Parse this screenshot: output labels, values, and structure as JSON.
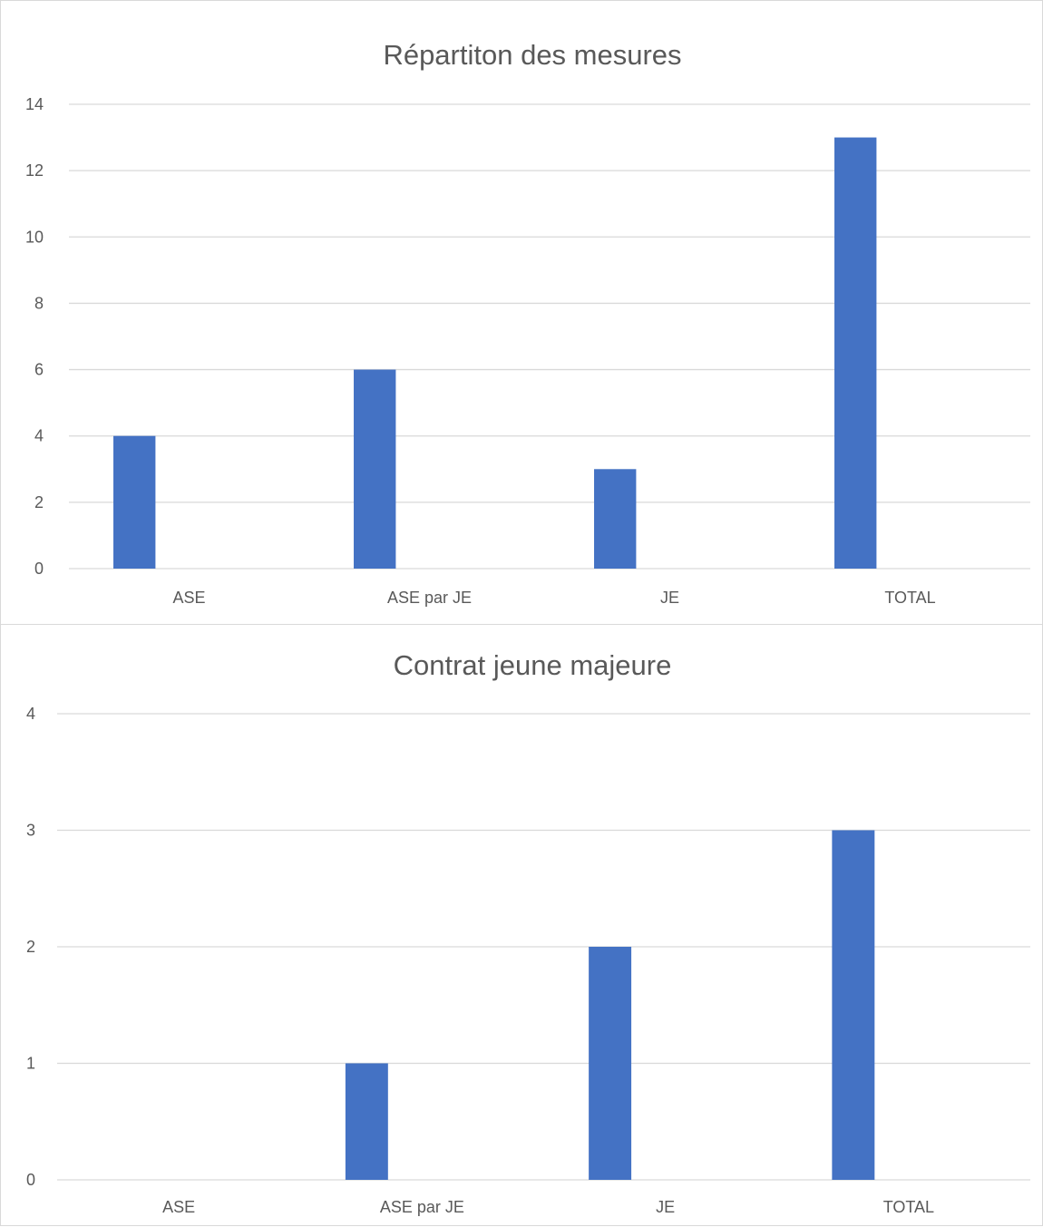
{
  "colors": {
    "bar": "#4472C4",
    "gridline": "#D9D9D9",
    "text": "#595959",
    "border": "#D9D9D9"
  },
  "chart_data": [
    {
      "type": "bar",
      "title": "Répartiton des mesures",
      "categories": [
        "ASE",
        "ASE par JE",
        "JE",
        "TOTAL"
      ],
      "series": [
        {
          "values": [
            4,
            6,
            3,
            13
          ]
        }
      ],
      "xlabel": "",
      "ylabel": "",
      "ylim": [
        0,
        14
      ],
      "yticks": [
        0,
        2,
        4,
        6,
        8,
        10,
        12,
        14
      ],
      "grid": true,
      "legend": "none"
    },
    {
      "type": "bar",
      "title": "Contrat jeune majeure",
      "categories": [
        "ASE",
        "ASE par JE",
        "JE",
        "TOTAL"
      ],
      "series": [
        {
          "values": [
            0,
            1,
            2,
            3
          ]
        }
      ],
      "xlabel": "",
      "ylabel": "",
      "ylim": [
        0,
        4
      ],
      "yticks": [
        0,
        1,
        2,
        3,
        4
      ],
      "grid": true,
      "legend": "none"
    }
  ]
}
